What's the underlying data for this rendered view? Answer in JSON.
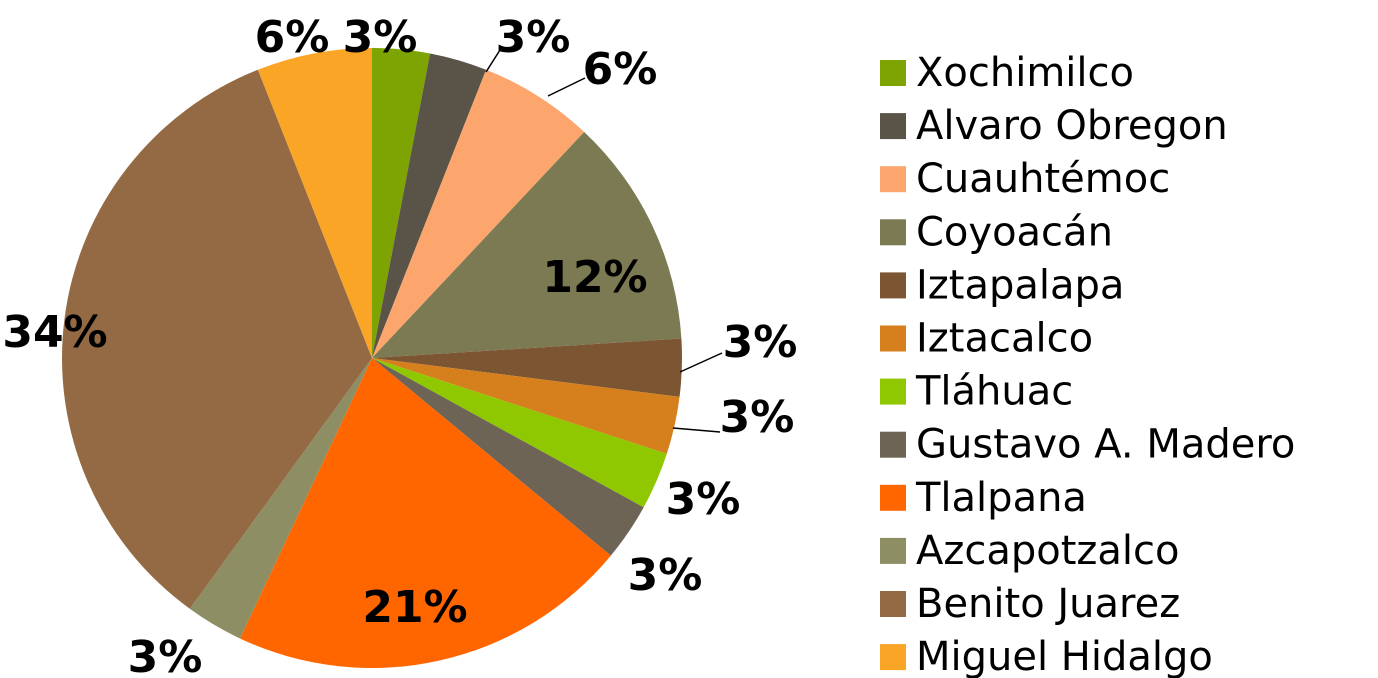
{
  "chart_data": {
    "type": "pie",
    "categories": [
      "Xochimilco",
      "Alvaro Obregon",
      "Cuauhtémoc",
      "Coyoacán",
      "Iztapalapa",
      "Iztacalco",
      "Tláhuac",
      "Gustavo A. Madero",
      "Tlalpana",
      "Azcapotzalco",
      "Benito Juarez",
      "Miguel Hidalgo"
    ],
    "values": [
      3,
      3,
      6,
      12,
      3,
      3,
      3,
      3,
      21,
      3,
      34,
      6
    ],
    "value_labels": [
      "3%",
      "3%",
      "6%",
      "12%",
      "3%",
      "3%",
      "3%",
      "3%",
      "21%",
      "3%",
      "34%",
      "6%"
    ],
    "colors": [
      "#7ea404",
      "#5a5347",
      "#fca56c",
      "#7b7a52",
      "#7c5533",
      "#d5801c",
      "#8fc800",
      "#6e6455",
      "#ff6600",
      "#8d8e63",
      "#936a43",
      "#fba526"
    ],
    "legend": "right"
  }
}
